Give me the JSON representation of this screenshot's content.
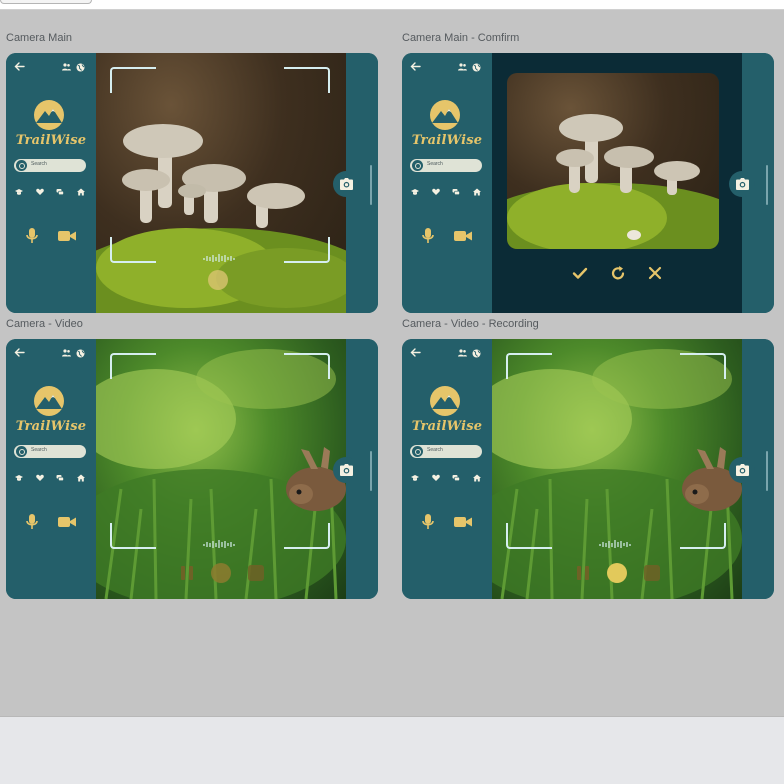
{
  "frames": [
    {
      "label": "Camera Main",
      "variant": "main"
    },
    {
      "label": "Camera Main - Comfirm",
      "variant": "confirm"
    },
    {
      "label": "Camera - Video",
      "variant": "video"
    },
    {
      "label": "Camera - Video - Recording",
      "variant": "recording"
    }
  ],
  "app": {
    "logo_text": "TrailWise",
    "search_placeholder": "Search"
  },
  "icons": {
    "back": "arrow-left-icon",
    "users": "users-icon",
    "globe": "globe-icon",
    "nav": [
      "graduation-cap-icon",
      "heart-icon",
      "chat-icon",
      "home-icon"
    ],
    "mic": "microphone-icon",
    "video": "video-camera-icon",
    "camera": "camera-icon",
    "confirm_actions": [
      "check-icon",
      "retake-icon",
      "close-icon"
    ]
  },
  "colors": {
    "primary": "#245f6a",
    "accent": "#e6c56a",
    "dark_overlay": "#0b2b36",
    "canvas": "#c4c4c4"
  }
}
